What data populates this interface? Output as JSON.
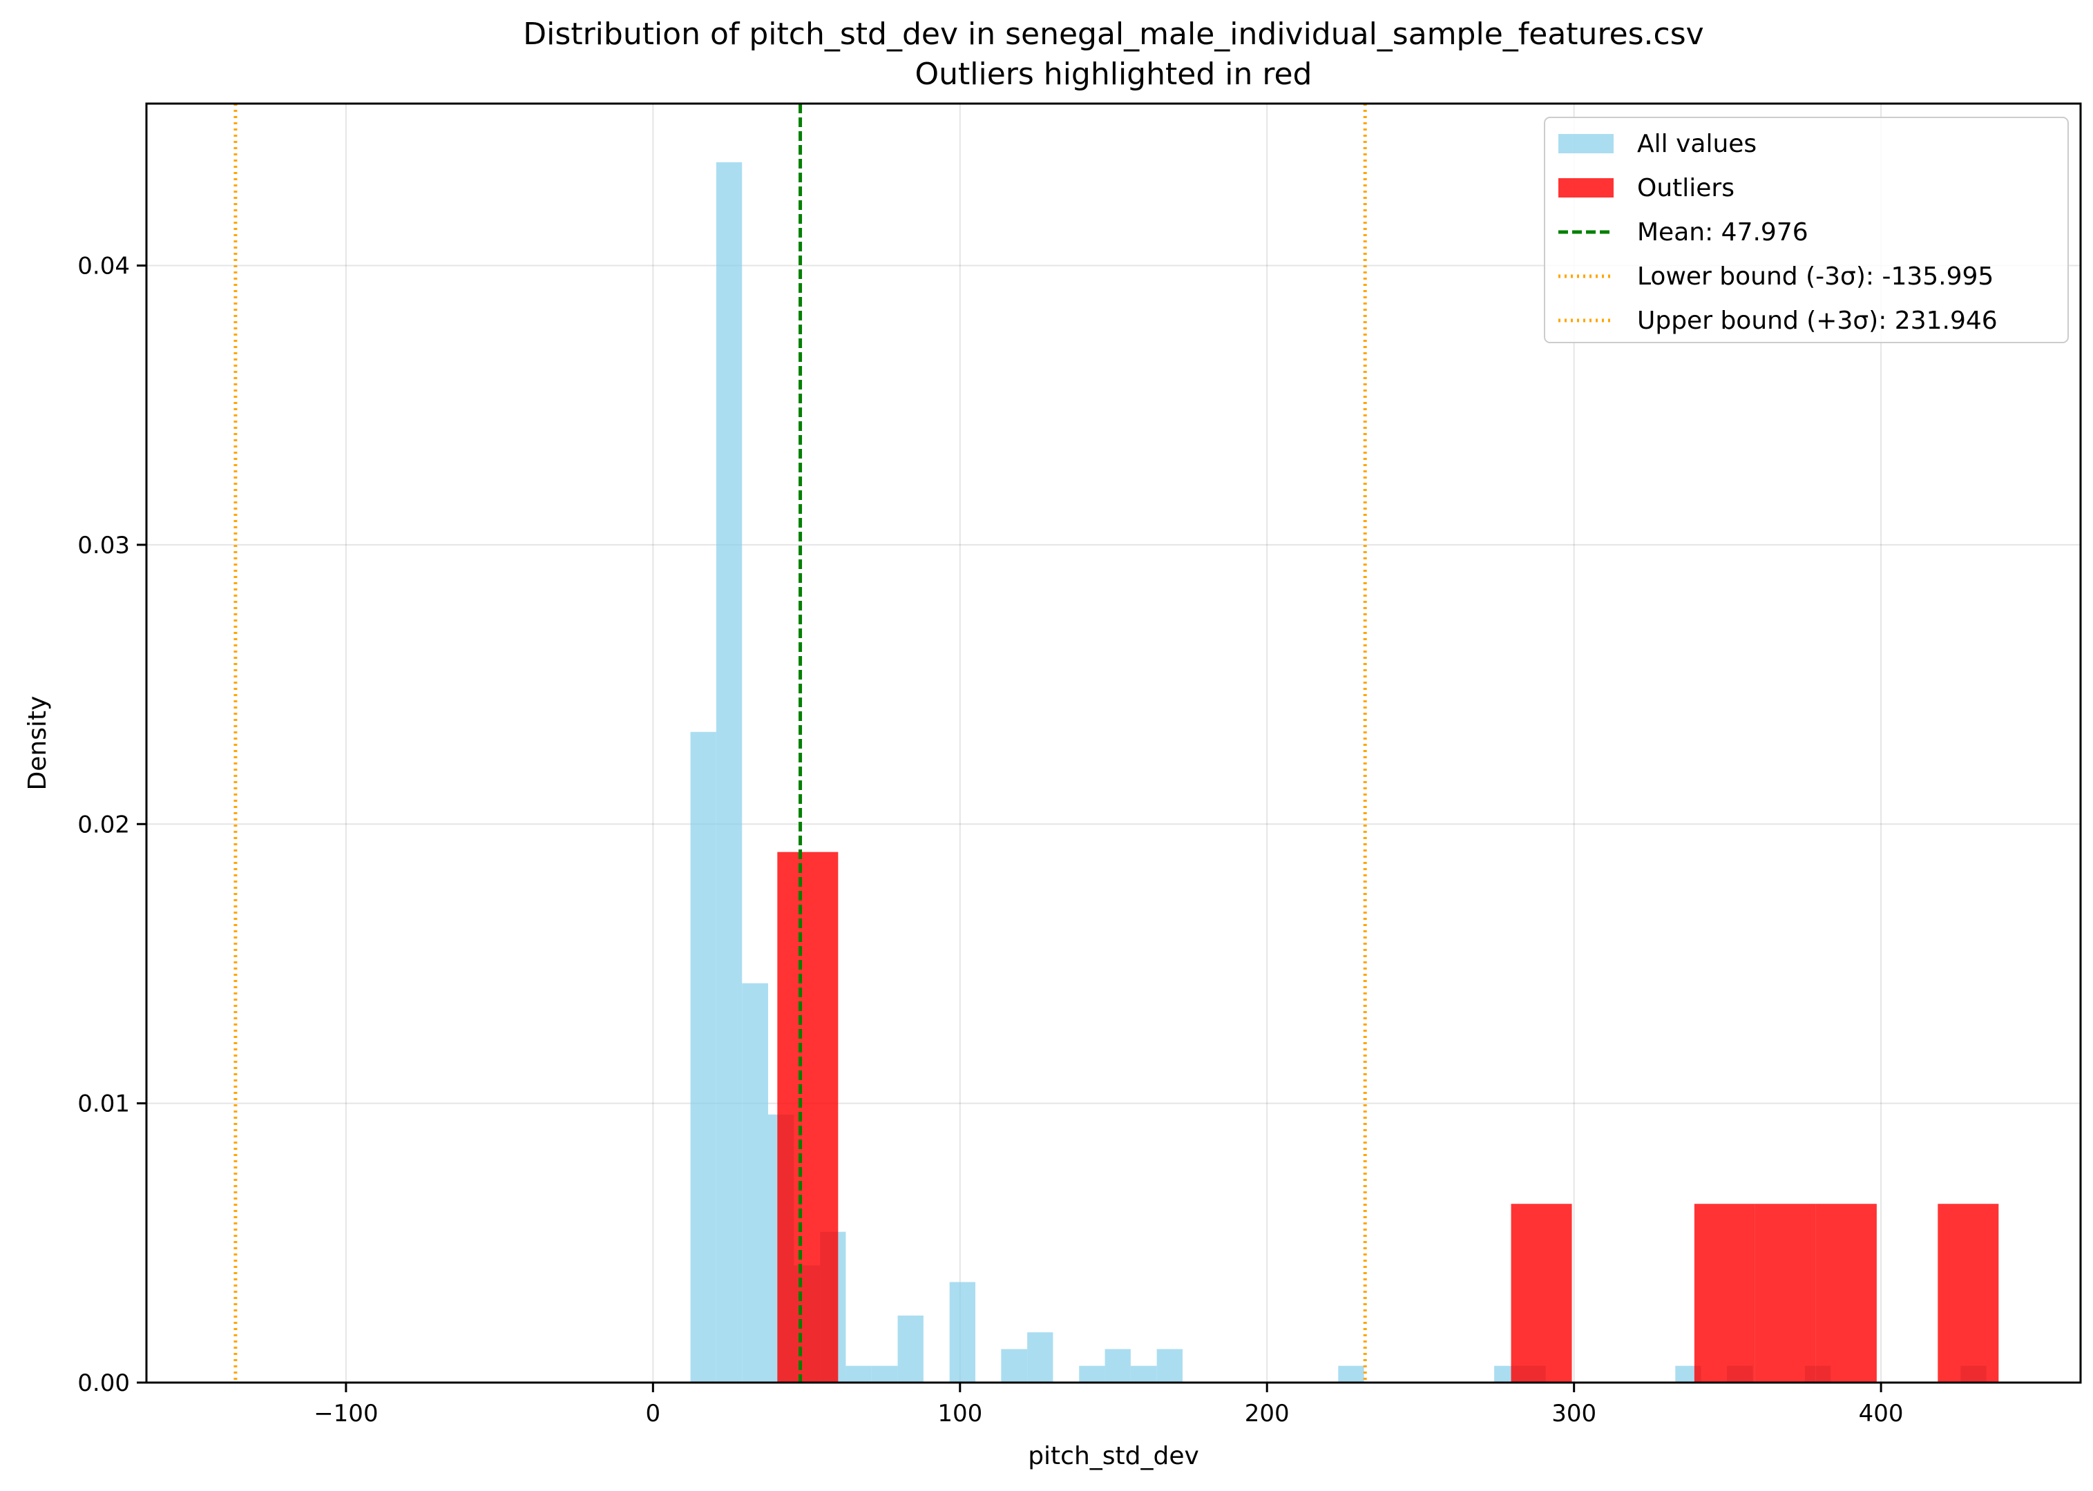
{
  "chart_data": {
    "type": "bar",
    "title": "Distribution of pitch_std_dev in senegal_male_individual_sample_features.csv",
    "subtitle": "Outliers highlighted in red",
    "xlabel": "pitch_std_dev",
    "ylabel": "Density",
    "xlim": [
      -165,
      465
    ],
    "ylim": [
      0,
      0.0458
    ],
    "x_ticks": [
      -100,
      0,
      100,
      200,
      300,
      400
    ],
    "x_tick_labels": [
      "−100",
      "0",
      "100",
      "200",
      "300",
      "400"
    ],
    "y_ticks": [
      0,
      0.01,
      0.02,
      0.03,
      0.04
    ],
    "y_tick_labels": [
      "0.00",
      "0.01",
      "0.02",
      "0.03",
      "0.04"
    ],
    "grid": true,
    "legend_position": "top-right",
    "series": [
      {
        "name": "All values",
        "kind": "histogram",
        "color": "#87CEEB",
        "opacity": 0.7,
        "bins": [
          {
            "x0": 12.2,
            "x1": 20.6,
            "y": 0.0233
          },
          {
            "x0": 20.6,
            "x1": 29.0,
            "y": 0.0437
          },
          {
            "x0": 29.0,
            "x1": 37.5,
            "y": 0.0143
          },
          {
            "x0": 37.5,
            "x1": 45.9,
            "y": 0.0096
          },
          {
            "x0": 45.9,
            "x1": 54.4,
            "y": 0.0042
          },
          {
            "x0": 54.4,
            "x1": 62.8,
            "y": 0.0054
          },
          {
            "x0": 62.8,
            "x1": 71.2,
            "y": 0.0006
          },
          {
            "x0": 71.2,
            "x1": 79.7,
            "y": 0.0006
          },
          {
            "x0": 79.7,
            "x1": 88.1,
            "y": 0.0024
          },
          {
            "x0": 96.6,
            "x1": 105.0,
            "y": 0.0036
          },
          {
            "x0": 113.4,
            "x1": 121.9,
            "y": 0.0012
          },
          {
            "x0": 121.9,
            "x1": 130.3,
            "y": 0.0018
          },
          {
            "x0": 138.8,
            "x1": 147.2,
            "y": 0.0006
          },
          {
            "x0": 147.2,
            "x1": 155.6,
            "y": 0.0012
          },
          {
            "x0": 155.6,
            "x1": 164.1,
            "y": 0.0006
          },
          {
            "x0": 164.1,
            "x1": 172.5,
            "y": 0.0012
          },
          {
            "x0": 223.2,
            "x1": 231.6,
            "y": 0.0006
          },
          {
            "x0": 274.0,
            "x1": 282.4,
            "y": 0.0006
          },
          {
            "x0": 282.4,
            "x1": 290.8,
            "y": 0.0006
          },
          {
            "x0": 333.0,
            "x1": 341.4,
            "y": 0.0006
          },
          {
            "x0": 349.8,
            "x1": 358.3,
            "y": 0.0006
          },
          {
            "x0": 375.2,
            "x1": 383.6,
            "y": 0.0006
          },
          {
            "x0": 425.9,
            "x1": 434.3,
            "y": 0.0006
          }
        ]
      },
      {
        "name": "Outliers",
        "kind": "histogram",
        "color": "#FF0000",
        "opacity": 0.8,
        "bins": [
          {
            "x0": 40.5,
            "x1": 60.3,
            "y": 0.019
          },
          {
            "x0": 279.5,
            "x1": 299.3,
            "y": 0.0064
          },
          {
            "x0": 339.2,
            "x1": 359.0,
            "y": 0.0064
          },
          {
            "x0": 359.0,
            "x1": 378.8,
            "y": 0.0064
          },
          {
            "x0": 378.8,
            "x1": 398.6,
            "y": 0.0064
          },
          {
            "x0": 418.5,
            "x1": 438.3,
            "y": 0.0064
          }
        ]
      }
    ],
    "reference_lines": [
      {
        "name": "Mean: 47.976",
        "x": 47.976,
        "color": "#008000",
        "style": "dashed"
      },
      {
        "name": "Lower bound (-3σ): -135.995",
        "x": -135.995,
        "color": "#FFA500",
        "style": "dotted"
      },
      {
        "name": "Upper bound (+3σ): 231.946",
        "x": 231.946,
        "color": "#FFA500",
        "style": "dotted"
      }
    ]
  }
}
